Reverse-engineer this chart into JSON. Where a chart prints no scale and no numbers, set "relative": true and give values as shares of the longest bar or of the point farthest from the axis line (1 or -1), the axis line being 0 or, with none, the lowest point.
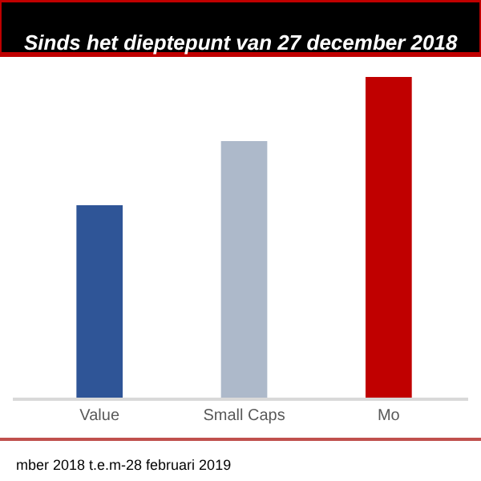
{
  "chart_data": {
    "type": "bar",
    "title": "Sinds het dieptepunt van 27 december 2018",
    "relative": true,
    "categories": [
      "Value",
      "Small Caps",
      "Mo"
    ],
    "values": [
      0.6,
      0.8,
      1
    ],
    "colors": [
      "#2f5597",
      "#adb9ca",
      "#c00000"
    ],
    "annotations": [
      "mber 2018 t.e.m-28 februari 2019"
    ]
  }
}
